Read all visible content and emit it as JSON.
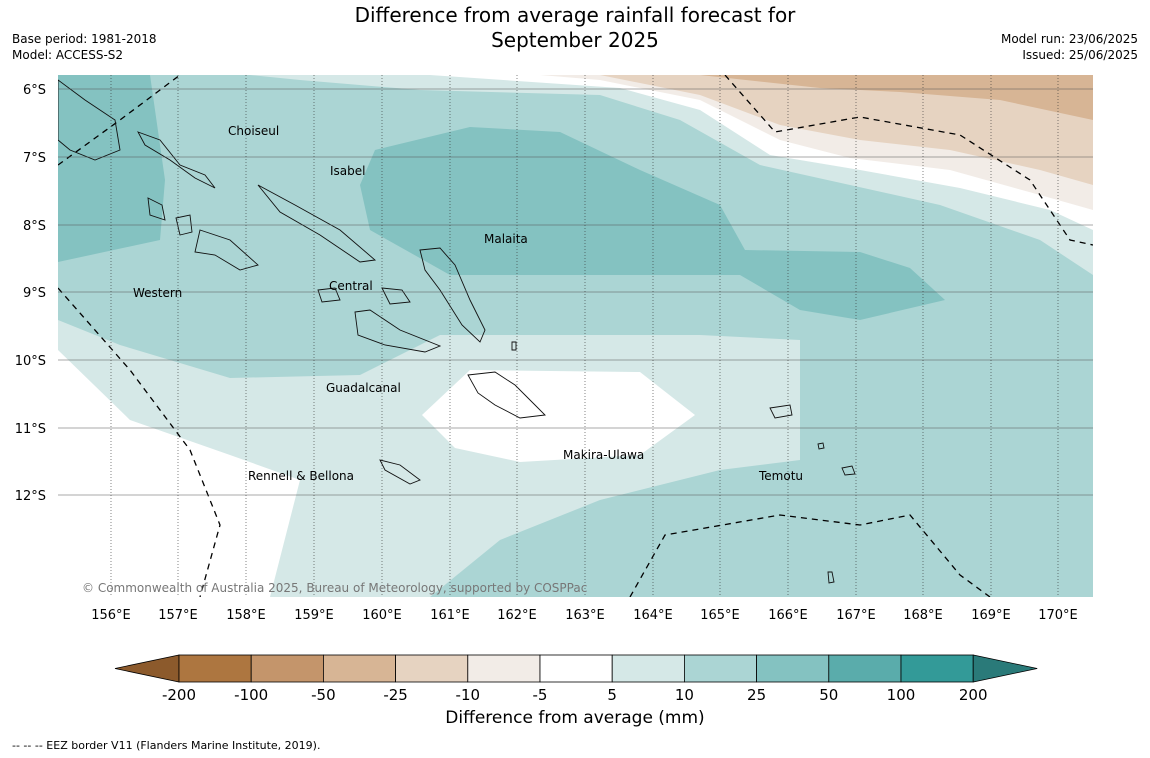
{
  "title_line1": "Difference from average rainfall forecast for",
  "title_line2": "September 2025",
  "base_period": "Base period: 1981-2018",
  "model": "Model: ACCESS-S2",
  "model_run": "Model run: 23/06/2025",
  "issued": "Issued: 25/06/2025",
  "copyright": "© Commonwealth of Australia 2025, Bureau of Meteorology, supported by COSPPac",
  "lat_labels": [
    "6°S",
    "7°S",
    "8°S",
    "9°S",
    "10°S",
    "11°S",
    "12°S"
  ],
  "lon_labels": [
    "156°E",
    "157°E",
    "158°E",
    "159°E",
    "160°E",
    "161°E",
    "162°E",
    "163°E",
    "164°E",
    "165°E",
    "166°E",
    "167°E",
    "168°E",
    "169°E",
    "170°E"
  ],
  "places": [
    {
      "name": "Choiseul"
    },
    {
      "name": "Isabel"
    },
    {
      "name": "Malaita"
    },
    {
      "name": "Central"
    },
    {
      "name": "Western"
    },
    {
      "name": "Guadalcanal"
    },
    {
      "name": "Makira-Ulawa"
    },
    {
      "name": "Rennell & Bellona"
    },
    {
      "name": "Temotu"
    }
  ],
  "colorbar": {
    "ticks": [
      "-200",
      "-100",
      "-50",
      "-25",
      "-10",
      "-5",
      "5",
      "10",
      "25",
      "50",
      "100",
      "200"
    ],
    "colors": [
      "#8c5a2c",
      "#ad7640",
      "#c4956b",
      "#d7b595",
      "#e6d3c1",
      "#f2ece7",
      "#ffffff",
      "#d5e8e7",
      "#abd5d4",
      "#84c2c1",
      "#5aacab",
      "#339a98",
      "#2a7a79"
    ],
    "label": "Difference from average (mm)"
  },
  "eez_note": "-- -- -- EEZ border V11 (Flanders Marine Institute, 2019)."
}
